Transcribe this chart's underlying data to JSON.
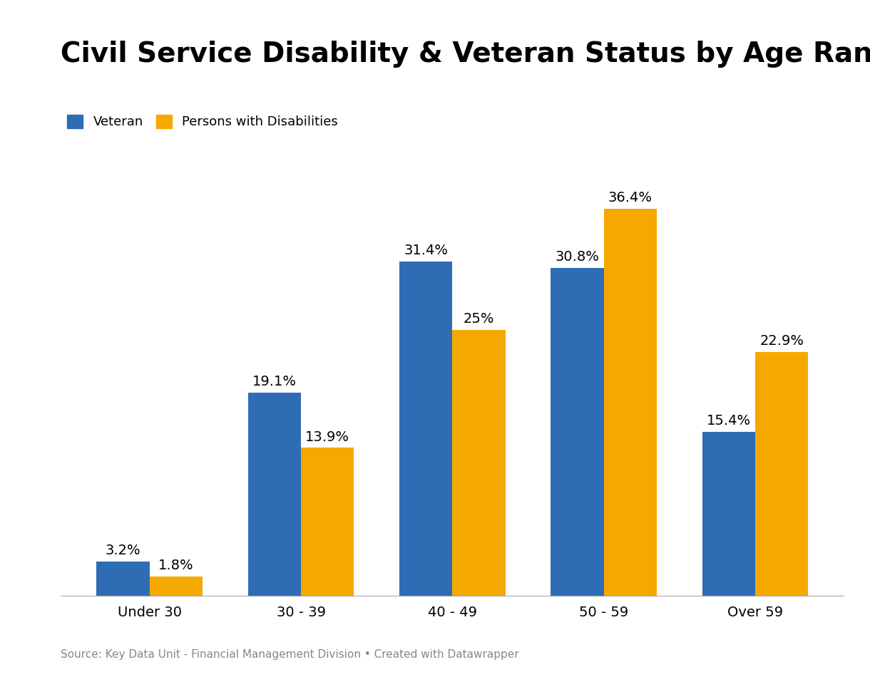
{
  "title": "Civil Service Disability & Veteran Status by Age Range",
  "categories": [
    "Under 30",
    "30 - 39",
    "40 - 49",
    "50 - 59",
    "Over 59"
  ],
  "veteran_values": [
    3.2,
    19.1,
    31.4,
    30.8,
    15.4
  ],
  "disability_values": [
    1.8,
    13.9,
    25.0,
    36.4,
    22.9
  ],
  "veteran_color": "#2E6DB4",
  "disability_color": "#F5A800",
  "legend_labels": [
    "Veteran",
    "Persons with Disabilities"
  ],
  "source_text": "Source: Key Data Unit - Financial Management Division • Created with Datawrapper",
  "title_fontsize": 28,
  "label_fontsize": 14,
  "tick_fontsize": 14,
  "legend_fontsize": 13,
  "source_fontsize": 11,
  "bar_width": 0.35,
  "ylim": [
    0,
    42
  ],
  "background_color": "#ffffff"
}
